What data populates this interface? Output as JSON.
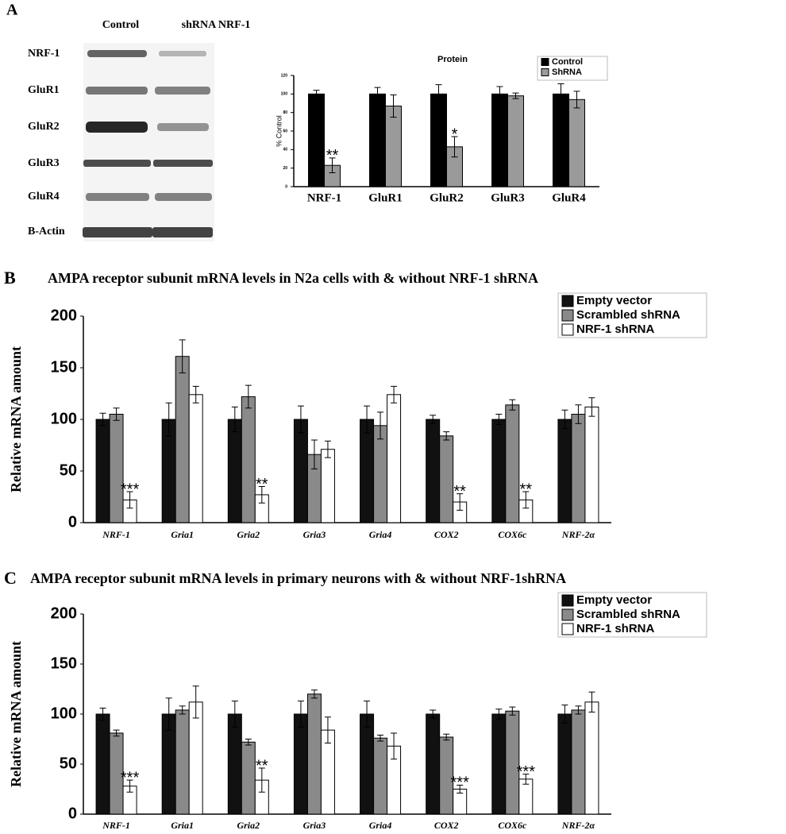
{
  "blot": {
    "panel": "A",
    "columns": [
      "Control",
      "shRNA NRF-1"
    ],
    "rows": [
      "NRF-1",
      "GluR1",
      "GluR2",
      "GluR3",
      "GluR4",
      "B-Actin"
    ]
  },
  "chart_data": [
    {
      "type": "bar",
      "title": "Protein",
      "ylabel": "% Control",
      "categories": [
        "NRF-1",
        "GluR1",
        "GluR2",
        "GluR3",
        "GluR4"
      ],
      "series": [
        {
          "name": "Control",
          "color": "#000000",
          "values": [
            100,
            100,
            100,
            100,
            100
          ],
          "errors": [
            4,
            7,
            10,
            8,
            11
          ]
        },
        {
          "name": "ShRNA",
          "color": "#9a9a9a",
          "values": [
            23,
            87,
            43,
            98,
            94
          ],
          "errors": [
            8,
            12,
            11,
            3,
            9
          ],
          "significance": [
            "**",
            null,
            "*",
            null,
            null
          ]
        }
      ],
      "ylim": [
        0,
        120
      ],
      "yticks": [
        0,
        20,
        40,
        60,
        80,
        100,
        120
      ]
    },
    {
      "type": "bar",
      "panel": "B",
      "title": "AMPA receptor subunit mRNA levels in N2a cells with & without NRF-1 shRNA",
      "ylabel": "Relative mRNA amount",
      "categories": [
        "NRF-1",
        "Gria1",
        "Gria2",
        "Gria3",
        "Gria4",
        "COX2",
        "COX6c",
        "NRF-2α"
      ],
      "series": [
        {
          "name": "Empty vector",
          "color": "#111111",
          "values": [
            100,
            100,
            100,
            100,
            100,
            100,
            100,
            100
          ],
          "errors": [
            6,
            16,
            12,
            13,
            13,
            4,
            5,
            9
          ]
        },
        {
          "name": "Scrambled shRNA",
          "color": "#8a8a8a",
          "values": [
            105,
            161,
            122,
            66,
            94,
            84,
            114,
            105
          ],
          "errors": [
            6,
            16,
            11,
            14,
            13,
            4,
            5,
            9
          ]
        },
        {
          "name": "NRF-1 shRNA",
          "color": "#ffffff",
          "values": [
            22,
            124,
            27,
            71,
            124,
            20,
            22,
            112
          ],
          "errors": [
            8,
            8,
            8,
            8,
            8,
            8,
            8,
            9
          ],
          "significance": [
            "***",
            null,
            "**",
            null,
            null,
            "**",
            "**",
            null
          ]
        }
      ],
      "ylim": [
        0,
        200
      ],
      "yticks": [
        0,
        50,
        100,
        150,
        200
      ]
    },
    {
      "type": "bar",
      "panel": "C",
      "title": "AMPA receptor subunit mRNA levels in primary neurons with & without NRF-1shRNA",
      "ylabel": "Relative mRNA amount",
      "categories": [
        "NRF-1",
        "Gria1",
        "Gria2",
        "Gria3",
        "Gria4",
        "COX2",
        "COX6c",
        "NRF-2α"
      ],
      "series": [
        {
          "name": "Empty vector",
          "color": "#111111",
          "values": [
            100,
            100,
            100,
            100,
            100,
            100,
            100,
            100
          ],
          "errors": [
            6,
            16,
            13,
            13,
            13,
            4,
            5,
            9
          ]
        },
        {
          "name": "Scrambled shRNA",
          "color": "#8a8a8a",
          "values": [
            81,
            104,
            72,
            120,
            76,
            77,
            103,
            104
          ],
          "errors": [
            3,
            4,
            3,
            4,
            3,
            3,
            4,
            4
          ]
        },
        {
          "name": "NRF-1 shRNA",
          "color": "#ffffff",
          "values": [
            28,
            112,
            34,
            84,
            68,
            25,
            35,
            112
          ],
          "errors": [
            6,
            16,
            12,
            13,
            13,
            4,
            5,
            10
          ],
          "significance": [
            "***",
            null,
            "**",
            null,
            null,
            "***",
            "***",
            null
          ]
        }
      ],
      "ylim": [
        0,
        200
      ],
      "yticks": [
        0,
        50,
        100,
        150,
        200
      ]
    }
  ]
}
